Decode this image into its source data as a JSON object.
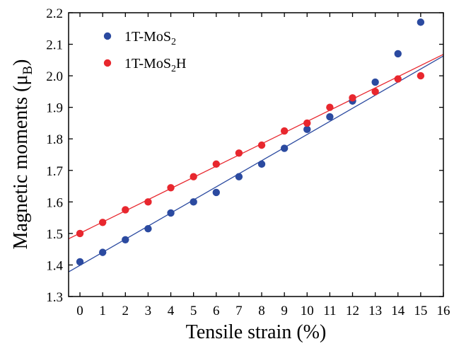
{
  "chart_data": {
    "type": "scatter",
    "xlabel": "Tensile strain (%)",
    "ylabel": "Magnetic moments (μ",
    "ylabel_sub": "B",
    "ylabel_close": ")",
    "xlim": [
      -0.5,
      16
    ],
    "ylim": [
      1.3,
      2.2
    ],
    "xticks": [
      0,
      1,
      2,
      3,
      4,
      5,
      6,
      7,
      8,
      9,
      10,
      11,
      12,
      13,
      14,
      15,
      16
    ],
    "yticks": [
      1.3,
      1.4,
      1.5,
      1.6,
      1.7,
      1.8,
      1.9,
      2.0,
      2.1,
      2.2
    ],
    "ytick_labels": [
      "1.3",
      "1.4",
      "1.5",
      "1.6",
      "1.7",
      "1.8",
      "1.9",
      "2.0",
      "2.1",
      "2.2"
    ],
    "grid": false,
    "legend_position": "top-left",
    "series": [
      {
        "name": "1T-MoS",
        "name_sub": "2",
        "name_tail": "",
        "color": "#2b4aa0",
        "x": [
          0,
          1,
          2,
          3,
          4,
          5,
          6,
          7,
          8,
          9,
          10,
          11,
          12,
          13,
          14,
          15
        ],
        "y": [
          1.41,
          1.44,
          1.48,
          1.515,
          1.565,
          1.6,
          1.63,
          1.68,
          1.72,
          1.77,
          1.83,
          1.87,
          1.92,
          1.98,
          2.07,
          2.17
        ],
        "fit": {
          "x": [
            -0.5,
            16
          ],
          "y": [
            1.378,
            2.063
          ]
        }
      },
      {
        "name": "1T-MoS",
        "name_sub": "2",
        "name_tail": "H",
        "color": "#e8272e",
        "x": [
          0,
          1,
          2,
          3,
          4,
          5,
          6,
          7,
          8,
          9,
          10,
          11,
          12,
          13,
          14,
          15
        ],
        "y": [
          1.5,
          1.535,
          1.575,
          1.6,
          1.645,
          1.68,
          1.72,
          1.755,
          1.78,
          1.825,
          1.85,
          1.9,
          1.93,
          1.95,
          1.99,
          2.0
        ],
        "fit": {
          "x": [
            -0.5,
            16
          ],
          "y": [
            1.483,
            2.068
          ]
        }
      }
    ]
  }
}
